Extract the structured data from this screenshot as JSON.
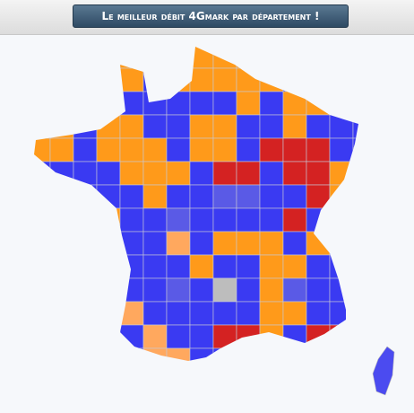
{
  "header": {
    "title": "Le meilleur débit 4Gmark par département !"
  }
}
